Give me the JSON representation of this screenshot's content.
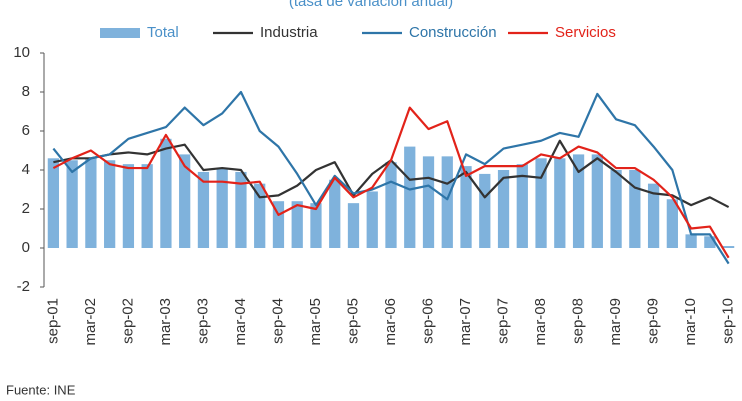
{
  "chart_data": {
    "type": "bar-line",
    "title": "(tasa de variación anual)",
    "source": "Fuente: INE",
    "categories": [
      "sep-01",
      null,
      "mar-02",
      null,
      "sep-02",
      null,
      "mar-03",
      null,
      "sep-03",
      null,
      "mar-04",
      null,
      "sep-04",
      null,
      "mar-05",
      null,
      "sep-05",
      null,
      "mar-06",
      null,
      "sep-06",
      null,
      "mar-07",
      null,
      "sep-07",
      null,
      "mar-08",
      null,
      "sep-08",
      null,
      "mar-09",
      null,
      "sep-09",
      null,
      "mar-10",
      null,
      "sep-10"
    ],
    "series": [
      {
        "name": "Total",
        "type": "bar",
        "color": "#7fb2dc",
        "values": [
          4.6,
          4.5,
          4.6,
          4.5,
          4.3,
          4.3,
          5.6,
          4.8,
          3.9,
          4.1,
          3.9,
          3.3,
          2.4,
          2.4,
          2.3,
          3.5,
          2.3,
          2.9,
          4.4,
          5.2,
          4.7,
          4.7,
          4.2,
          3.8,
          4.0,
          4.3,
          4.6,
          4.6,
          4.8,
          4.8,
          4.0,
          4.0,
          3.3,
          2.5,
          0.7,
          0.6,
          0.1
        ]
      },
      {
        "name": "Industria",
        "type": "line",
        "color": "#333333",
        "values": [
          4.4,
          4.6,
          4.6,
          4.8,
          4.9,
          4.8,
          5.1,
          5.3,
          4.0,
          4.1,
          4.0,
          2.6,
          2.7,
          3.2,
          4.0,
          4.4,
          2.7,
          3.8,
          4.5,
          3.5,
          3.6,
          3.3,
          3.9,
          2.6,
          3.6,
          3.7,
          3.6,
          5.5,
          3.9,
          4.6,
          3.9,
          3.1,
          2.8,
          2.7,
          2.2,
          2.6,
          2.1
        ]
      },
      {
        "name": "Construcción",
        "type": "line",
        "color": "#2e75a8",
        "values": [
          5.1,
          3.9,
          4.6,
          4.8,
          5.6,
          5.9,
          6.2,
          7.2,
          6.3,
          6.9,
          8.0,
          6.0,
          5.2,
          3.8,
          2.2,
          3.7,
          2.8,
          3.0,
          3.4,
          3.0,
          3.2,
          2.5,
          4.8,
          4.3,
          5.1,
          5.3,
          5.5,
          5.9,
          5.7,
          7.9,
          6.6,
          6.3,
          5.2,
          4.0,
          0.7,
          0.7,
          -0.8
        ]
      },
      {
        "name": "Servicios",
        "type": "line",
        "color": "#e2231a",
        "values": [
          4.1,
          4.6,
          5.0,
          4.3,
          4.1,
          4.1,
          5.8,
          4.2,
          3.4,
          3.4,
          3.3,
          3.4,
          1.7,
          2.2,
          2.0,
          3.6,
          2.6,
          3.1,
          4.5,
          7.2,
          6.1,
          6.5,
          3.7,
          4.2,
          4.2,
          4.2,
          4.8,
          4.6,
          5.2,
          4.9,
          4.1,
          4.1,
          3.5,
          2.6,
          1.0,
          1.1,
          -0.5
        ]
      }
    ],
    "ylim": [
      -2,
      10
    ],
    "yticks": [
      -2,
      0,
      2,
      4,
      6,
      8,
      10
    ],
    "grid": false
  }
}
